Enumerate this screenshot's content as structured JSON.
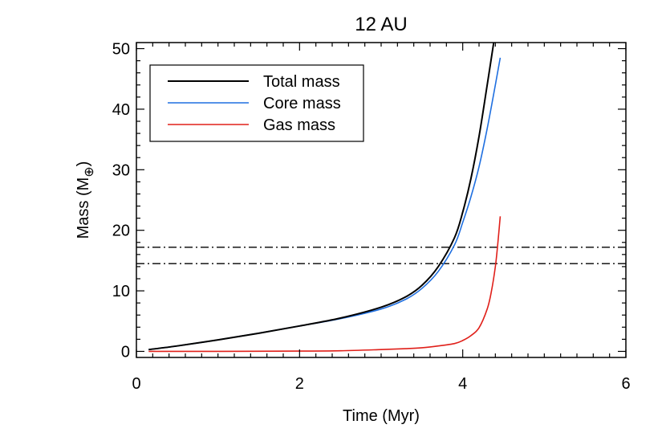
{
  "chart_data": {
    "type": "line",
    "title": "12 AU",
    "xlabel": "Time (Myr)",
    "ylabel_main": "Mass (M",
    "ylabel_sub": "⊕",
    "ylabel_close": ")",
    "xlim": [
      0,
      6
    ],
    "ylim": [
      -1,
      51
    ],
    "x_ticks": [
      "0",
      "2",
      "4",
      "6"
    ],
    "y_ticks": [
      "0",
      "10",
      "20",
      "30",
      "40",
      "50"
    ],
    "legend_position": "top-left",
    "series": [
      {
        "name": "Total mass",
        "color": "#000000",
        "x": [
          0.15,
          0.5,
          1.0,
          1.5,
          2.0,
          2.5,
          3.0,
          3.3,
          3.5,
          3.7,
          3.9,
          4.0,
          4.1,
          4.2,
          4.3,
          4.38
        ],
        "y": [
          0.3,
          0.9,
          1.9,
          3.0,
          4.2,
          5.5,
          7.3,
          9.0,
          10.9,
          14.0,
          18.8,
          23.0,
          28.5,
          35.5,
          44.0,
          51.0
        ]
      },
      {
        "name": "Core mass",
        "color": "#1f6fe0",
        "x": [
          0.15,
          0.5,
          1.0,
          1.5,
          2.0,
          2.5,
          3.0,
          3.3,
          3.5,
          3.7,
          3.9,
          4.0,
          4.1,
          4.2,
          4.3,
          4.4,
          4.46
        ],
        "y": [
          0.3,
          0.9,
          1.9,
          3.0,
          4.2,
          5.4,
          7.0,
          8.6,
          10.4,
          13.2,
          17.6,
          21.3,
          25.5,
          30.5,
          36.8,
          44.0,
          48.5
        ]
      },
      {
        "name": "Gas mass",
        "color": "#e0201a",
        "x": [
          0.15,
          1.0,
          2.0,
          2.5,
          3.0,
          3.3,
          3.5,
          3.7,
          3.9,
          4.0,
          4.1,
          4.2,
          4.3,
          4.35,
          4.4,
          4.43,
          4.46
        ],
        "y": [
          0.0,
          0.0,
          0.05,
          0.1,
          0.3,
          0.45,
          0.6,
          0.9,
          1.3,
          1.8,
          2.6,
          3.9,
          7.0,
          9.8,
          14.0,
          17.8,
          22.3
        ]
      }
    ],
    "reference_lines": [
      {
        "y": 17.2,
        "style": "dash-dot",
        "color": "#000000"
      },
      {
        "y": 14.5,
        "style": "dash-dot",
        "color": "#000000"
      }
    ]
  }
}
